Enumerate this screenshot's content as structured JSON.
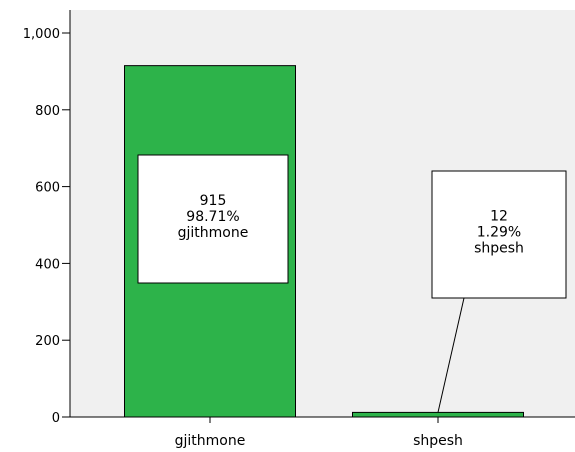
{
  "chart_data": {
    "type": "bar",
    "categories": [
      "gjithmone",
      "shpesh"
    ],
    "values": [
      915,
      12
    ],
    "data_labels": [
      {
        "count": "915",
        "percent": "98.71%",
        "category": "gjithmone"
      },
      {
        "count": "12",
        "percent": "1.29%",
        "category": "shpesh"
      }
    ],
    "y_ticks": [
      0,
      200,
      400,
      600,
      800,
      1000
    ],
    "y_tick_labels": [
      "0",
      "200",
      "400",
      "600",
      "800",
      "1,000"
    ],
    "ylim": [
      0,
      1000
    ],
    "grid": false,
    "title": "",
    "xlabel": "",
    "ylabel": "",
    "colors": {
      "bar_fill": "#2db34a",
      "bar_stroke": "#000000",
      "plot_background": "#f0f0f0"
    }
  }
}
